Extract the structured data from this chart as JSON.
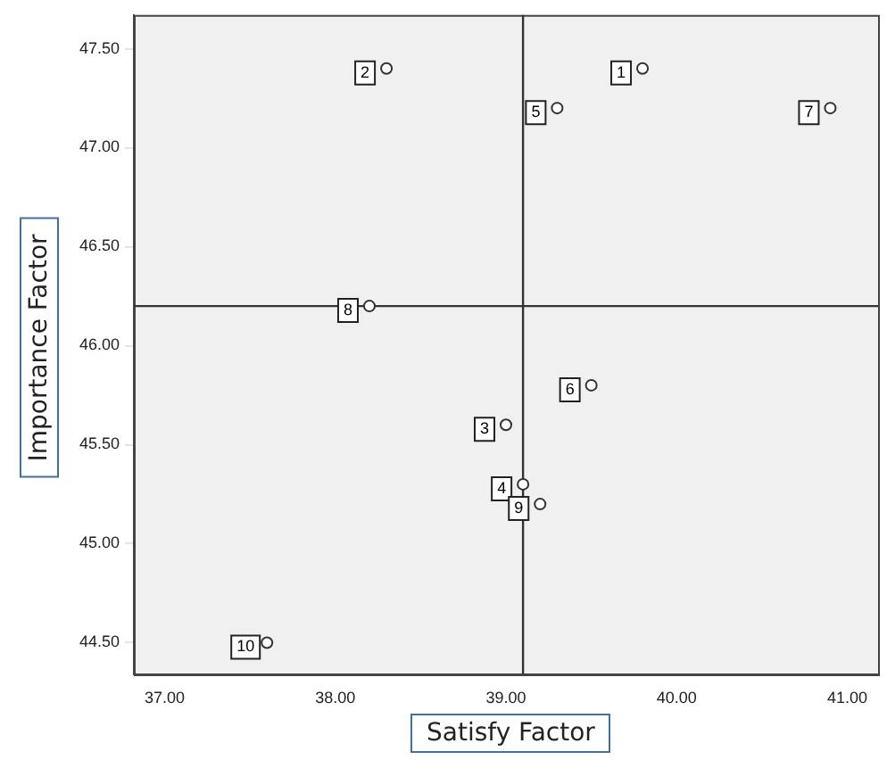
{
  "chart_data": {
    "type": "scatter",
    "xlabel": "Satisfy Factor",
    "ylabel": "Importance Factor",
    "x": [
      39.8,
      38.3,
      39.0,
      39.1,
      39.3,
      39.5,
      40.9,
      38.2,
      39.2,
      37.6
    ],
    "series": [
      {
        "color": "#333333",
        "values": [
          47.4,
          47.4,
          45.6,
          45.3,
          47.2,
          45.8,
          47.2,
          46.2,
          45.2,
          44.5
        ]
      }
    ],
    "xlim": [
      36.82,
      41.18
    ],
    "xticks": [
      {
        "value": 37,
        "label": "37.00"
      },
      {
        "value": 38,
        "label": "38.00"
      },
      {
        "value": 39,
        "label": "39.00"
      },
      {
        "value": 40,
        "label": "40.00"
      },
      {
        "value": 41,
        "label": "41.00"
      }
    ],
    "ylim": [
      44.34,
      47.67
    ],
    "yticks": [
      {
        "value": 44.5,
        "label": "44.50"
      },
      {
        "value": 45,
        "label": "45.00"
      },
      {
        "value": 45.5,
        "label": "45.50"
      },
      {
        "value": 46,
        "label": "46.00"
      },
      {
        "value": 46.5,
        "label": "46.50"
      },
      {
        "value": 47,
        "label": "47.00"
      },
      {
        "value": 47.5,
        "label": "47.50"
      }
    ],
    "ref_lines": [
      {
        "axis": "x",
        "value": 39.1,
        "color": "#333333"
      },
      {
        "axis": "y",
        "value": 46.2,
        "color": "#333333"
      }
    ],
    "annotations": [
      {
        "text": "1",
        "x": 39.8,
        "y": 47.4
      },
      {
        "text": "2",
        "x": 38.3,
        "y": 47.4
      },
      {
        "text": "3",
        "x": 39.0,
        "y": 45.6
      },
      {
        "text": "4",
        "x": 39.1,
        "y": 45.3
      },
      {
        "text": "5",
        "x": 39.3,
        "y": 47.2
      },
      {
        "text": "6",
        "x": 39.5,
        "y": 45.8
      },
      {
        "text": "7",
        "x": 40.9,
        "y": 47.2
      },
      {
        "text": "8",
        "x": 38.2,
        "y": 46.2
      },
      {
        "text": "9",
        "x": 39.2,
        "y": 45.2
      },
      {
        "text": "10",
        "x": 37.6,
        "y": 44.5
      }
    ],
    "marker": "circle",
    "grid": false,
    "legend": false
  }
}
